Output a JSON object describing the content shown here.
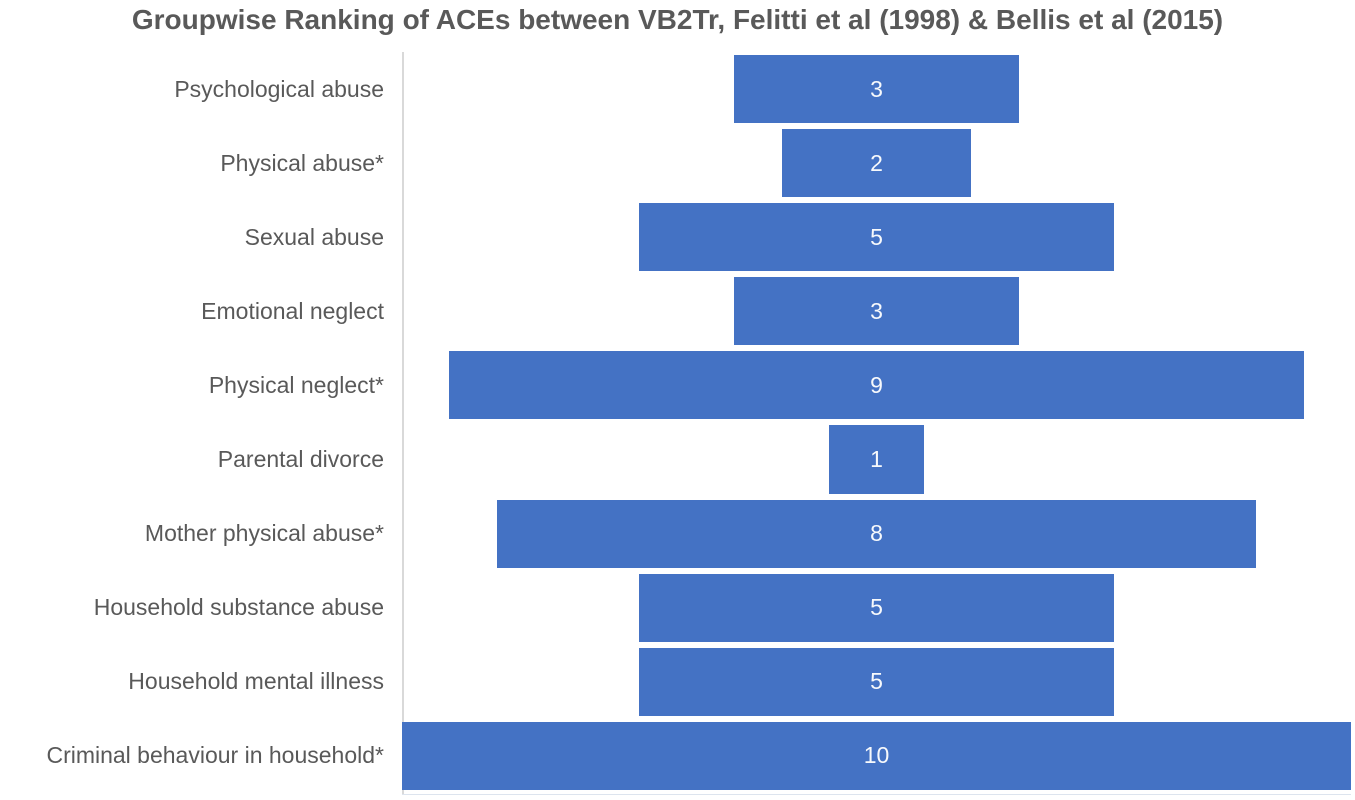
{
  "chart_data": {
    "type": "bar",
    "orientation": "horizontal-centered",
    "title": "Groupwise Ranking of ACEs between VB2Tr, Felitti et al (1998) & Bellis et al (2015)",
    "categories": [
      "Psychological abuse",
      "Physical abuse*",
      "Sexual abuse",
      "Emotional neglect",
      "Physical neglect*",
      "Parental divorce",
      "Mother physical abuse*",
      "Household substance abuse",
      "Household mental illness",
      "Criminal behaviour in household*"
    ],
    "values": [
      3,
      2,
      5,
      3,
      9,
      1,
      8,
      5,
      5,
      10
    ],
    "xlabel": "",
    "ylabel": "",
    "xlim": [
      0,
      10
    ],
    "grid": false,
    "legend": false,
    "data_labels": "inside-center",
    "colors": {
      "bar": "#4472C4",
      "bar_label_text": "#F7F9FC",
      "title_text": "#595959",
      "category_text": "#595959",
      "axis_line": "#D9D9D9"
    }
  }
}
